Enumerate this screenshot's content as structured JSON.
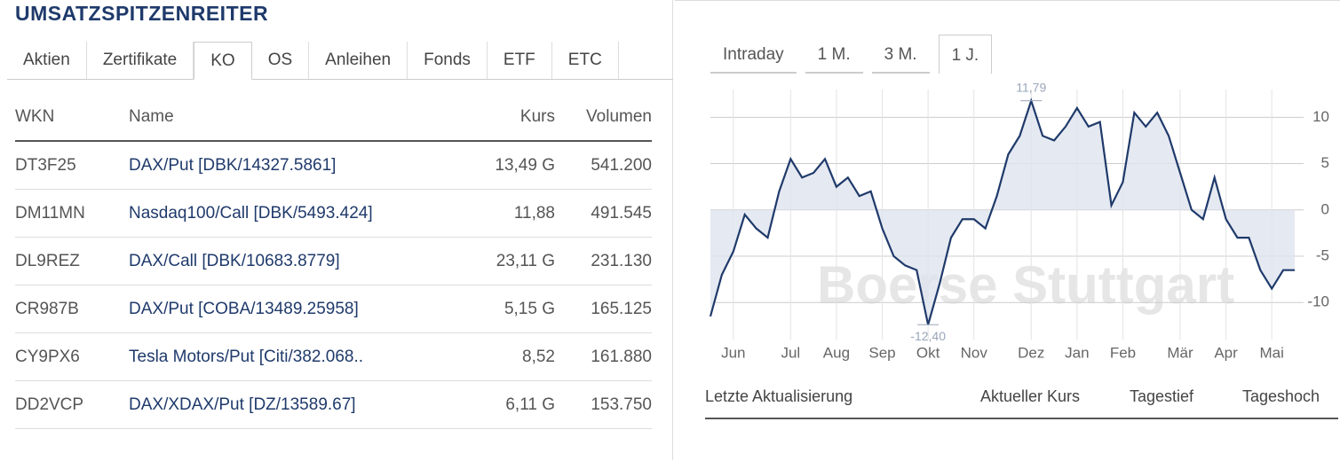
{
  "header": {
    "title": "UMSATZSPITZENREITER"
  },
  "tabs": [
    "Aktien",
    "Zertifikate",
    "KO",
    "OS",
    "Anleihen",
    "Fonds",
    "ETF",
    "ETC"
  ],
  "active_tab": 2,
  "table": {
    "columns": [
      "WKN",
      "Name",
      "Kurs",
      "Volumen"
    ],
    "rows": [
      [
        "DT3F25",
        "DAX/Put [DBK/14327.5861]",
        "13,49 G",
        "541.200"
      ],
      [
        "DM11MN",
        "Nasdaq100/Call [DBK/5493.424]",
        "11,88",
        "491.545"
      ],
      [
        "DL9REZ",
        "DAX/Call [DBK/10683.8779]",
        "23,11 G",
        "231.130"
      ],
      [
        "CR987B",
        "DAX/Put [COBA/13489.25958]",
        "5,15 G",
        "165.125"
      ],
      [
        "CY9PX6",
        "Tesla Motors/Put [Citi/382.068..",
        "8,52",
        "161.880"
      ],
      [
        "DD2VCP",
        "DAX/XDAX/Put [DZ/13589.67]",
        "6,11 G",
        "153.750"
      ]
    ]
  },
  "range_tabs": [
    "Intraday",
    "1 M.",
    "3 M.",
    "1 J."
  ],
  "active_range": 3,
  "chart_data": {
    "type": "line",
    "categories": [
      null,
      null,
      "Jun",
      null,
      null,
      null,
      null,
      "Jul",
      null,
      null,
      null,
      "Aug",
      null,
      null,
      null,
      "Sep",
      null,
      null,
      null,
      "Okt",
      null,
      null,
      null,
      "Nov",
      null,
      null,
      null,
      null,
      "Dez",
      null,
      null,
      null,
      "Jan",
      null,
      null,
      null,
      "Feb",
      null,
      null,
      null,
      null,
      "Mär",
      null,
      null,
      null,
      "Apr",
      null,
      null,
      null,
      "Mai",
      null,
      null
    ],
    "values": [
      -11.5,
      -7,
      -4.5,
      -0.5,
      -2,
      -3,
      2,
      5.5,
      3.5,
      4,
      5.5,
      2.5,
      3.5,
      1.5,
      2,
      -2,
      -5,
      -6,
      -6.5,
      -12.4,
      -8,
      -3,
      -1,
      -1,
      -2,
      1.5,
      6,
      8,
      11.79,
      8,
      7.5,
      9,
      11,
      9,
      9.5,
      0.5,
      3,
      10.5,
      9,
      10.5,
      8,
      4,
      0,
      -1,
      3.5,
      -1,
      -3,
      -3,
      -6.5,
      -8.5,
      -6.5,
      -6.5
    ],
    "color": "#1f3a6b",
    "ylim": [
      -14,
      13
    ],
    "yticks": [
      10,
      5,
      0,
      -5,
      -10
    ],
    "grid": true,
    "annotations": [
      {
        "text": "11,79",
        "value": 11.79
      },
      {
        "text": "-12,40",
        "value": -12.4
      }
    ],
    "watermark": "Boerse Stuttgart"
  },
  "footer": [
    "Letzte Aktualisierung",
    "Aktueller Kurs",
    "Tagestief",
    "Tageshoch"
  ]
}
